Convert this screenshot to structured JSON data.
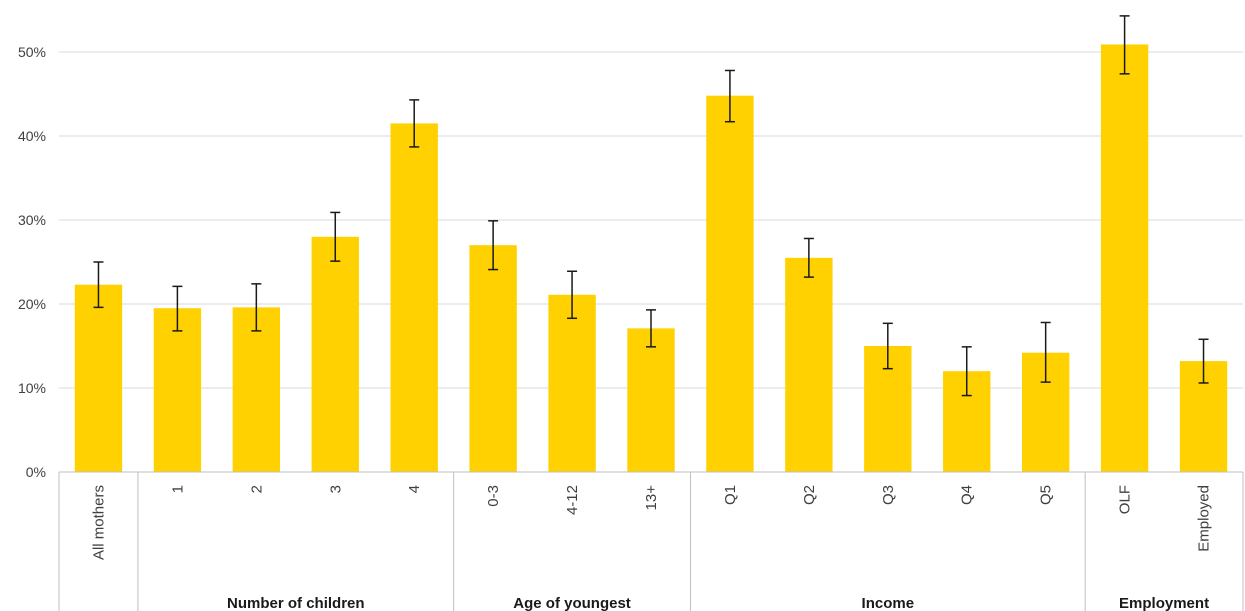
{
  "chart_data": {
    "type": "bar",
    "categories": [
      "All mothers",
      "1",
      "2",
      "3",
      "4",
      "0-3",
      "4-12",
      "13+",
      "Q1",
      "Q2",
      "Q3",
      "Q4",
      "Q5",
      "OLF",
      "Employed"
    ],
    "values": [
      22.3,
      19.5,
      19.6,
      28.0,
      41.5,
      27.0,
      21.1,
      17.1,
      44.8,
      25.5,
      15.0,
      12.0,
      14.2,
      50.9,
      13.2
    ],
    "error_low": [
      19.6,
      16.8,
      16.8,
      25.1,
      38.7,
      24.1,
      18.3,
      14.9,
      41.7,
      23.2,
      12.3,
      9.1,
      10.7,
      47.4,
      10.6
    ],
    "error_high": [
      25.0,
      22.1,
      22.4,
      30.9,
      44.3,
      29.9,
      23.9,
      19.3,
      47.8,
      27.8,
      17.7,
      14.9,
      17.8,
      54.3,
      15.8
    ],
    "groups": [
      {
        "label": "",
        "start": 0,
        "end": 0
      },
      {
        "label": "Number of children",
        "start": 1,
        "end": 4
      },
      {
        "label": "Age of youngest",
        "start": 5,
        "end": 7
      },
      {
        "label": "Income",
        "start": 8,
        "end": 12
      },
      {
        "label": "Employment",
        "start": 13,
        "end": 14
      }
    ],
    "ylim": [
      0,
      55
    ],
    "yticks": [
      0,
      10,
      20,
      30,
      40,
      50
    ],
    "ytick_labels": [
      "0%",
      "10%",
      "20%",
      "30%",
      "40%",
      "50%"
    ],
    "grid": true,
    "colors": {
      "bar": "#FFD100",
      "error": "#1a1a1a",
      "grid": "#d9d9d9"
    }
  }
}
